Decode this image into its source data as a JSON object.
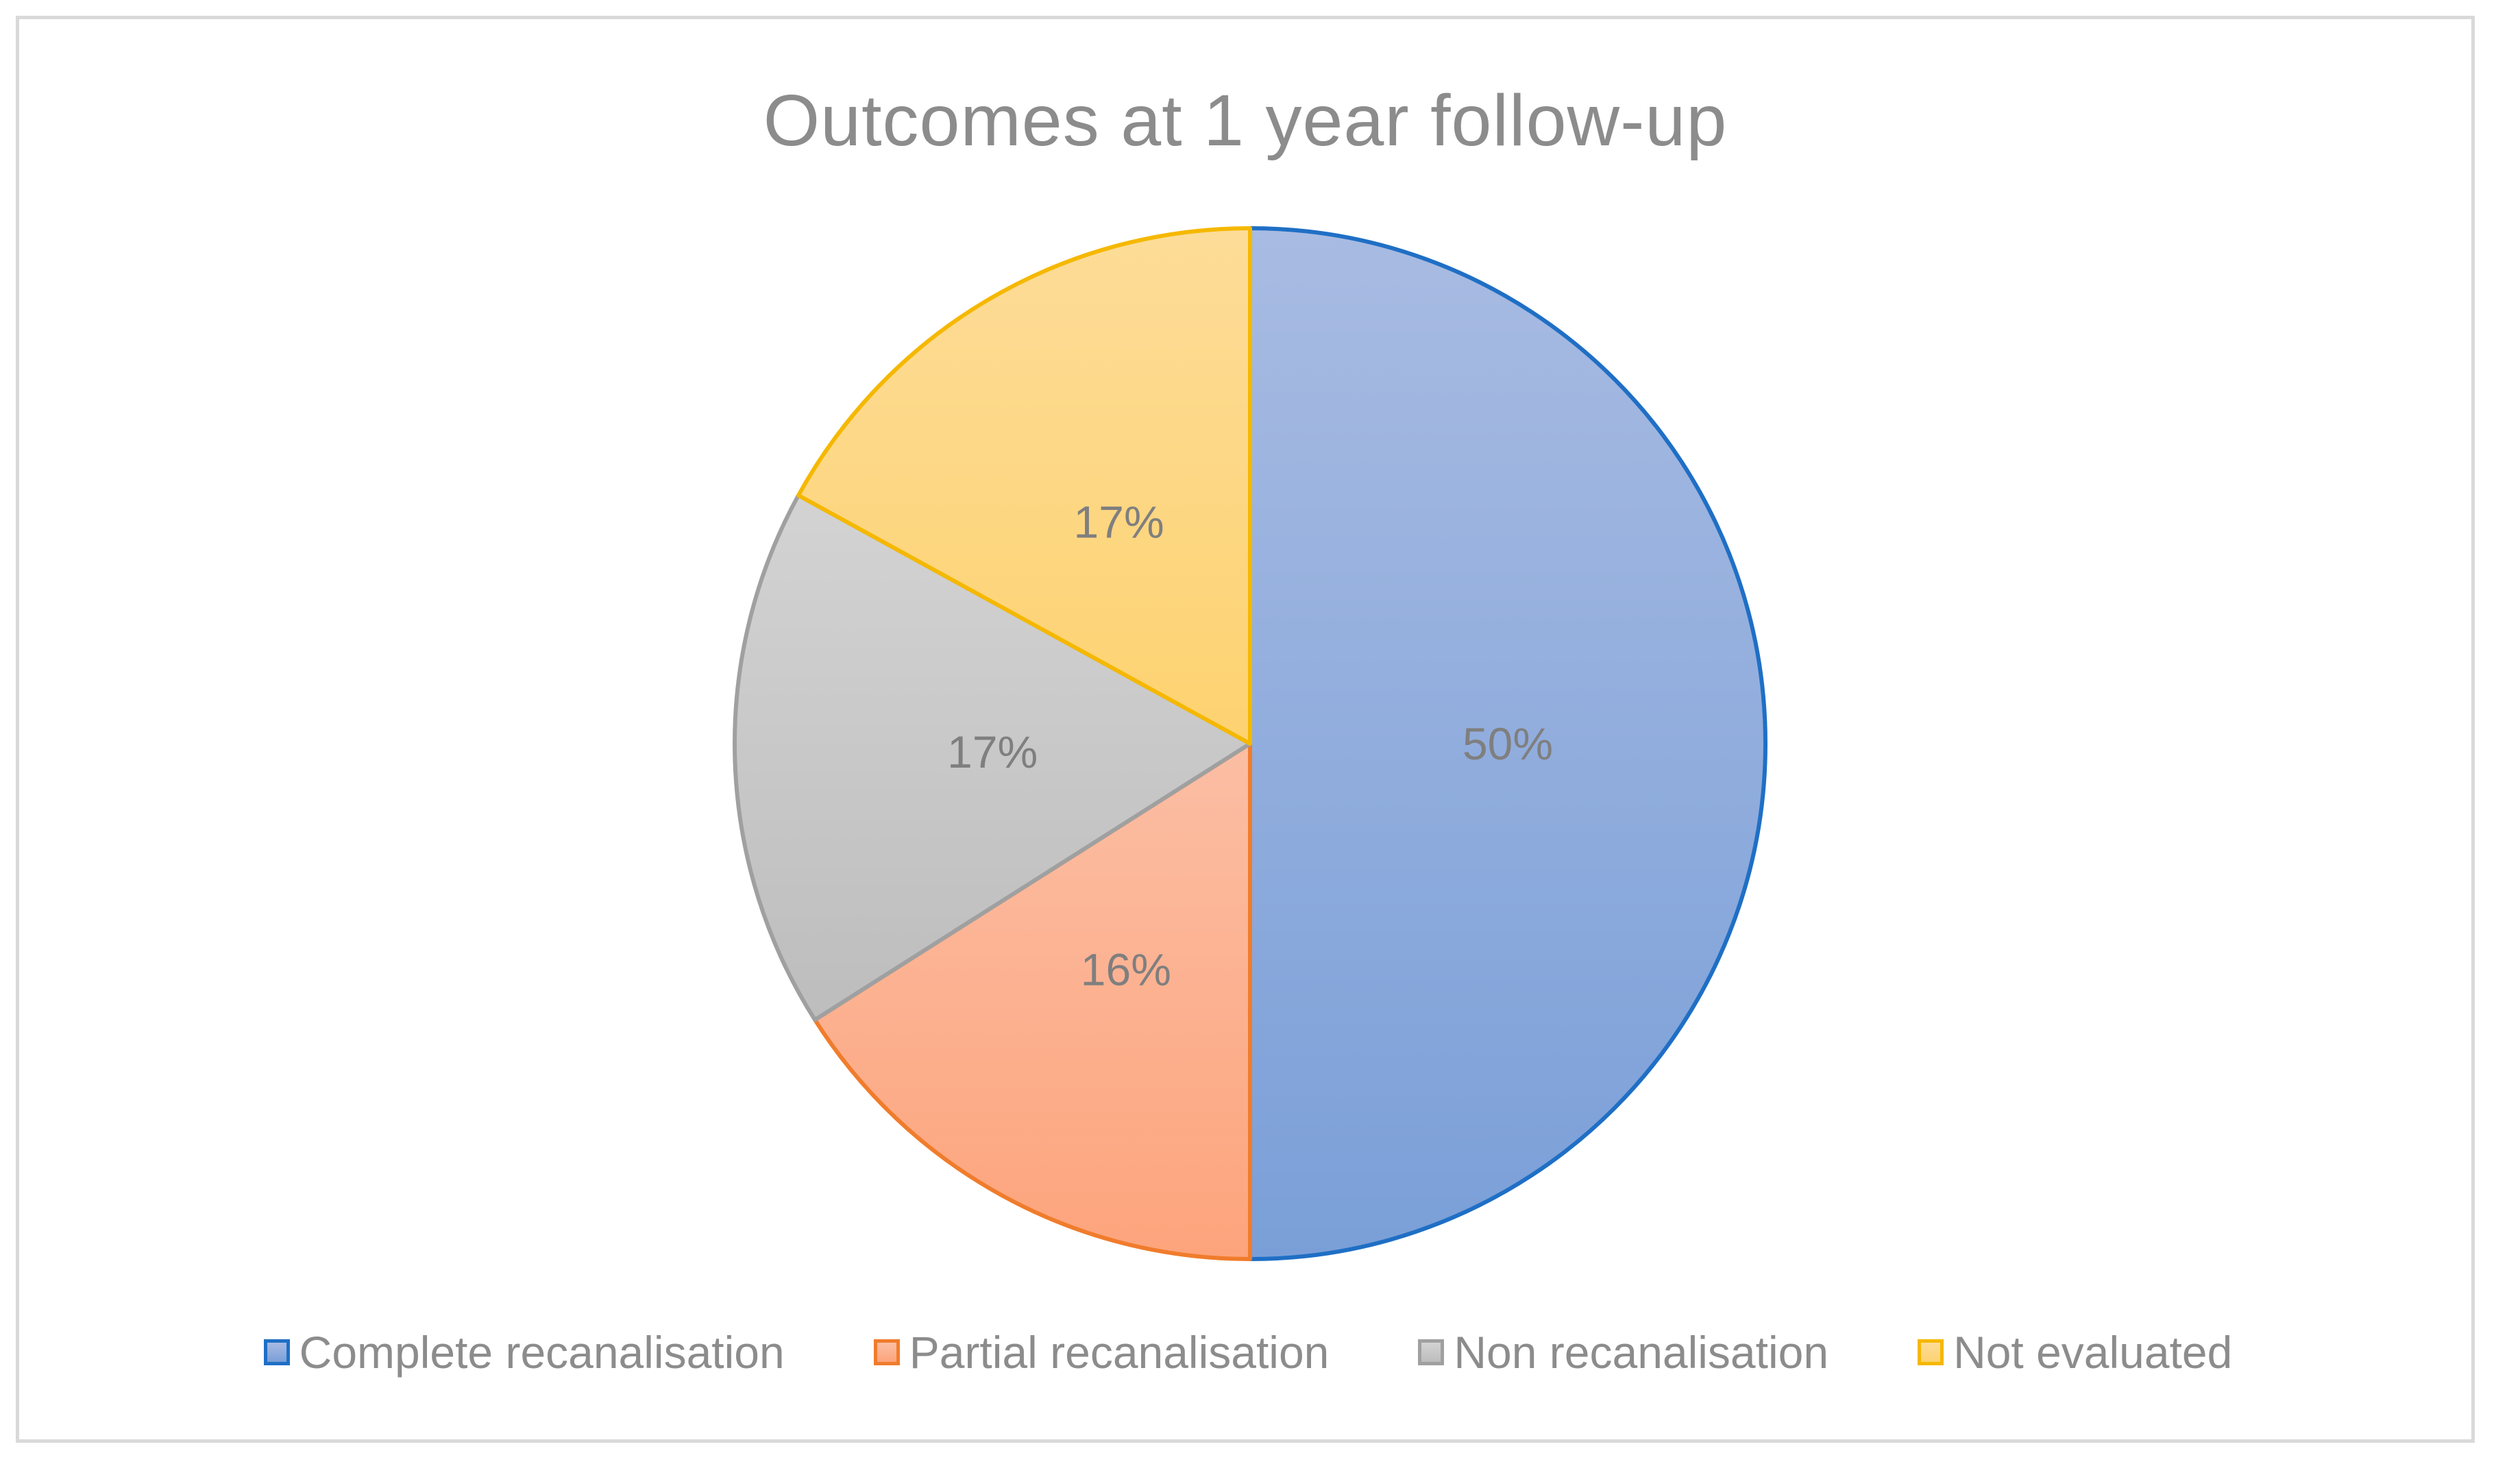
{
  "chart_data": {
    "type": "pie",
    "title": "Outcomes at 1 year follow-up",
    "start_angle_deg": 0,
    "direction": "clockwise",
    "legend_position": "bottom",
    "slices": [
      {
        "label": "Complete recanalisation",
        "value": 50,
        "display": "50%",
        "fill_top": "#a8bbe2",
        "fill_bottom": "#7a9fd8",
        "stroke": "#1f6fc5"
      },
      {
        "label": "Partial recanalisation",
        "value": 16,
        "display": "16%",
        "fill_top": "#fbbea4",
        "fill_bottom": "#fda47c",
        "stroke": "#f07c2c"
      },
      {
        "label": "Non recanalisation",
        "value": 17,
        "display": "17%",
        "fill_top": "#d3d3d3",
        "fill_bottom": "#bdbdbd",
        "stroke": "#a0a0a0"
      },
      {
        "label": "Not evaluated",
        "value": 17,
        "display": "17%",
        "fill_top": "#fddc98",
        "fill_bottom": "#fdd270",
        "stroke": "#f5b800"
      }
    ]
  }
}
